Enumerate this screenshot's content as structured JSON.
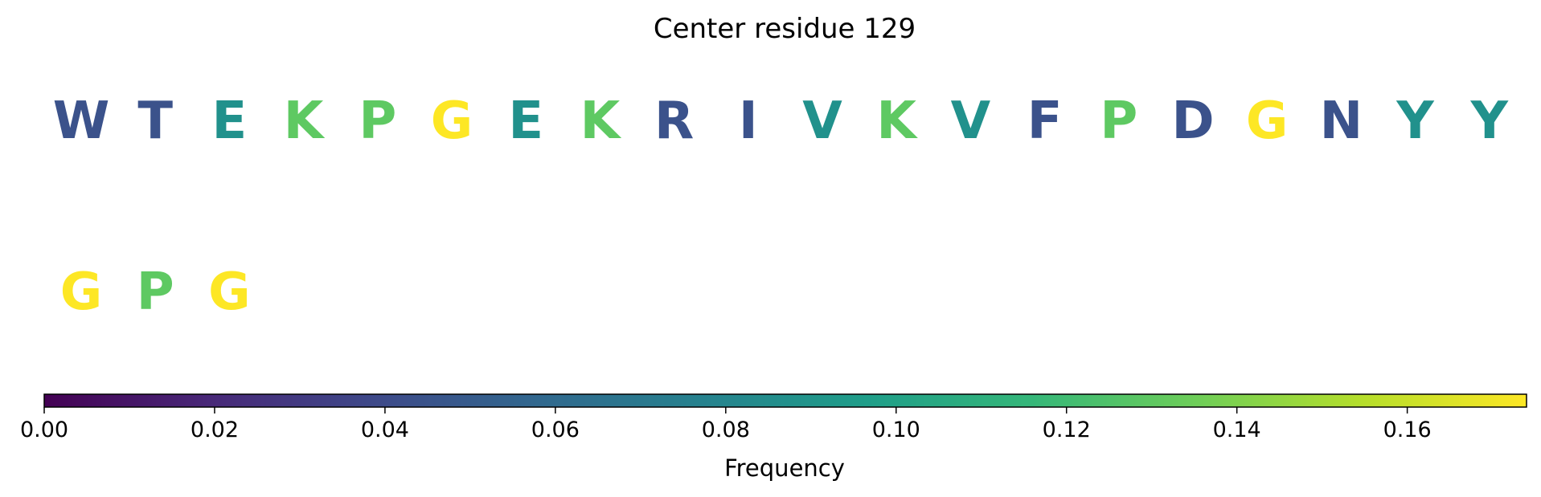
{
  "chart_data": {
    "type": "other",
    "title": "Center residue 129",
    "rows": [
      {
        "residues": [
          {
            "letter": "W",
            "color": "#3b528b"
          },
          {
            "letter": "T",
            "color": "#3b528b"
          },
          {
            "letter": "E",
            "color": "#21918c"
          },
          {
            "letter": "K",
            "color": "#5ec962"
          },
          {
            "letter": "P",
            "color": "#5ec962"
          },
          {
            "letter": "G",
            "color": "#fde725"
          },
          {
            "letter": "E",
            "color": "#21918c"
          },
          {
            "letter": "K",
            "color": "#5ec962"
          },
          {
            "letter": "R",
            "color": "#3b528b"
          },
          {
            "letter": "I",
            "color": "#3b528b"
          },
          {
            "letter": "V",
            "color": "#21918c"
          },
          {
            "letter": "K",
            "color": "#5ec962"
          },
          {
            "letter": "V",
            "color": "#21918c"
          },
          {
            "letter": "F",
            "color": "#3b528b"
          },
          {
            "letter": "P",
            "color": "#5ec962"
          },
          {
            "letter": "D",
            "color": "#3b528b"
          },
          {
            "letter": "G",
            "color": "#fde725"
          },
          {
            "letter": "N",
            "color": "#3b528b"
          },
          {
            "letter": "Y",
            "color": "#21918c"
          },
          {
            "letter": "Y",
            "color": "#21918c"
          }
        ]
      },
      {
        "residues": [
          {
            "letter": "G",
            "color": "#fde725"
          },
          {
            "letter": "P",
            "color": "#5ec962"
          },
          {
            "letter": "G",
            "color": "#fde725"
          }
        ]
      }
    ],
    "colorbar": {
      "label": "Frequency",
      "range": [
        0,
        0.174
      ],
      "ticks": [
        "0.00",
        "0.02",
        "0.04",
        "0.06",
        "0.08",
        "0.10",
        "0.12",
        "0.14",
        "0.16"
      ],
      "tick_values": [
        0,
        0.02,
        0.04,
        0.06,
        0.08,
        0.1,
        0.12,
        0.14,
        0.16
      ],
      "colormap": "viridis",
      "colormap_stops": [
        "#440154",
        "#482878",
        "#3e4989",
        "#31688e",
        "#26828e",
        "#1f9e89",
        "#35b779",
        "#6ece58",
        "#b5de2b",
        "#fde725"
      ]
    }
  }
}
